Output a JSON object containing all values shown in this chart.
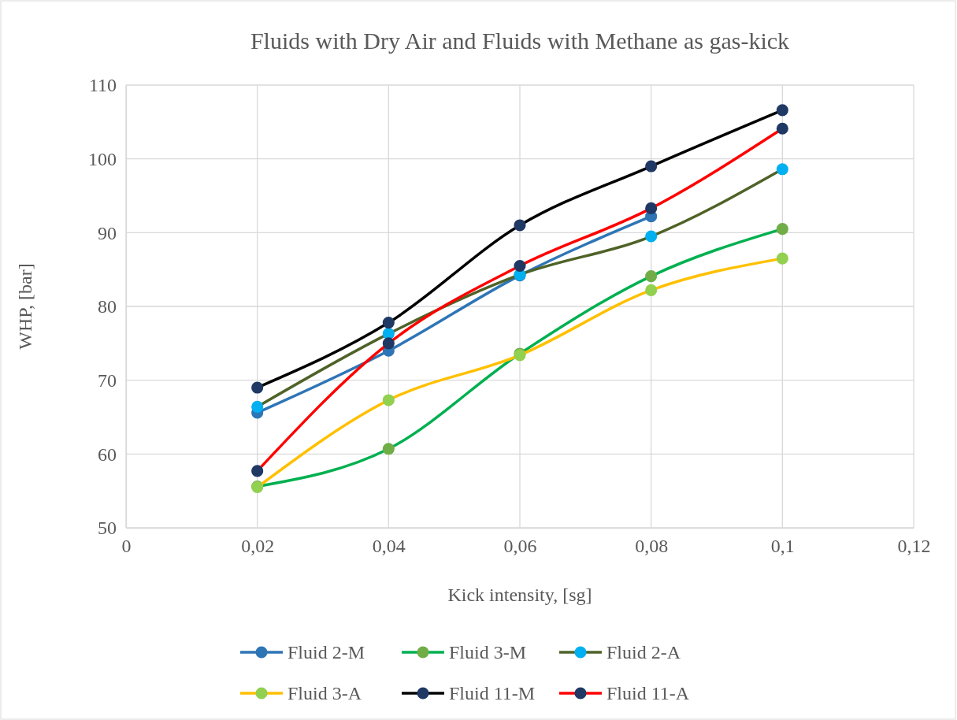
{
  "chart_data": {
    "type": "line",
    "title": "Fluids with Dry Air and Fluids with Methane as gas-kick",
    "xlabel": "Kick intensity, [sg]",
    "ylabel": "WHP, [bar]",
    "x": [
      0.02,
      0.04,
      0.06,
      0.08,
      0.1
    ],
    "xlim": [
      0,
      0.12
    ],
    "xticks": [
      0,
      {
        "value": 0.02,
        "label": "0,02"
      },
      {
        "value": 0.04,
        "label": "0,04"
      },
      {
        "value": 0.06,
        "label": "0,06"
      },
      {
        "value": 0.08,
        "label": "0,08"
      },
      {
        "value": 0.1,
        "label": "0,1"
      },
      {
        "value": 0.12,
        "label": "0,12"
      }
    ],
    "ylim": [
      50,
      110
    ],
    "yticks": [
      50,
      60,
      70,
      80,
      90,
      100,
      110
    ],
    "grid": true,
    "legend": "bottom",
    "marker": "circle",
    "line_style": "solid",
    "series": [
      {
        "name": "Fluid 2-M",
        "color": "#2e75b6",
        "values": [
          65.6,
          74.0,
          84.2,
          92.2,
          null
        ]
      },
      {
        "name": "Fluid 3-M",
        "color": "#00b050",
        "colors": [
          "#70ad47",
          "#70ad47",
          "#70ad47",
          "#70ad47",
          "#70ad47"
        ],
        "values": [
          55.6,
          60.7,
          73.6,
          84.1,
          90.5
        ]
      },
      {
        "name": "Fluid 2-A",
        "color": "#4f6228",
        "colors": [
          "#00b0f0",
          "#00b0f0",
          "#00b0f0",
          "#00b0f0",
          "#00b0f0"
        ],
        "values": [
          66.4,
          76.3,
          84.3,
          89.5,
          98.6
        ]
      },
      {
        "name": "Fluid 3-A",
        "color": "#ffc000",
        "colors": [
          "#92d050",
          "#92d050",
          "#92d050",
          "#92d050",
          "#92d050"
        ],
        "values": [
          55.5,
          67.3,
          73.4,
          82.2,
          86.5
        ]
      },
      {
        "name": "Fluid 11-M",
        "color": "#000000",
        "colors": [
          "#1f3864",
          "#1f3864",
          "#1f3864",
          "#1f3864",
          "#1f3864"
        ],
        "values": [
          69.0,
          77.8,
          91.0,
          99.0,
          106.6
        ]
      },
      {
        "name": "Fluid 11-A",
        "color": "#ff0000",
        "colors": [
          "#1f3864",
          "#1f3864",
          "#1f3864",
          "#1f3864",
          "#1f3864"
        ],
        "values": [
          57.7,
          75.0,
          85.5,
          93.3,
          104.1
        ]
      }
    ]
  }
}
